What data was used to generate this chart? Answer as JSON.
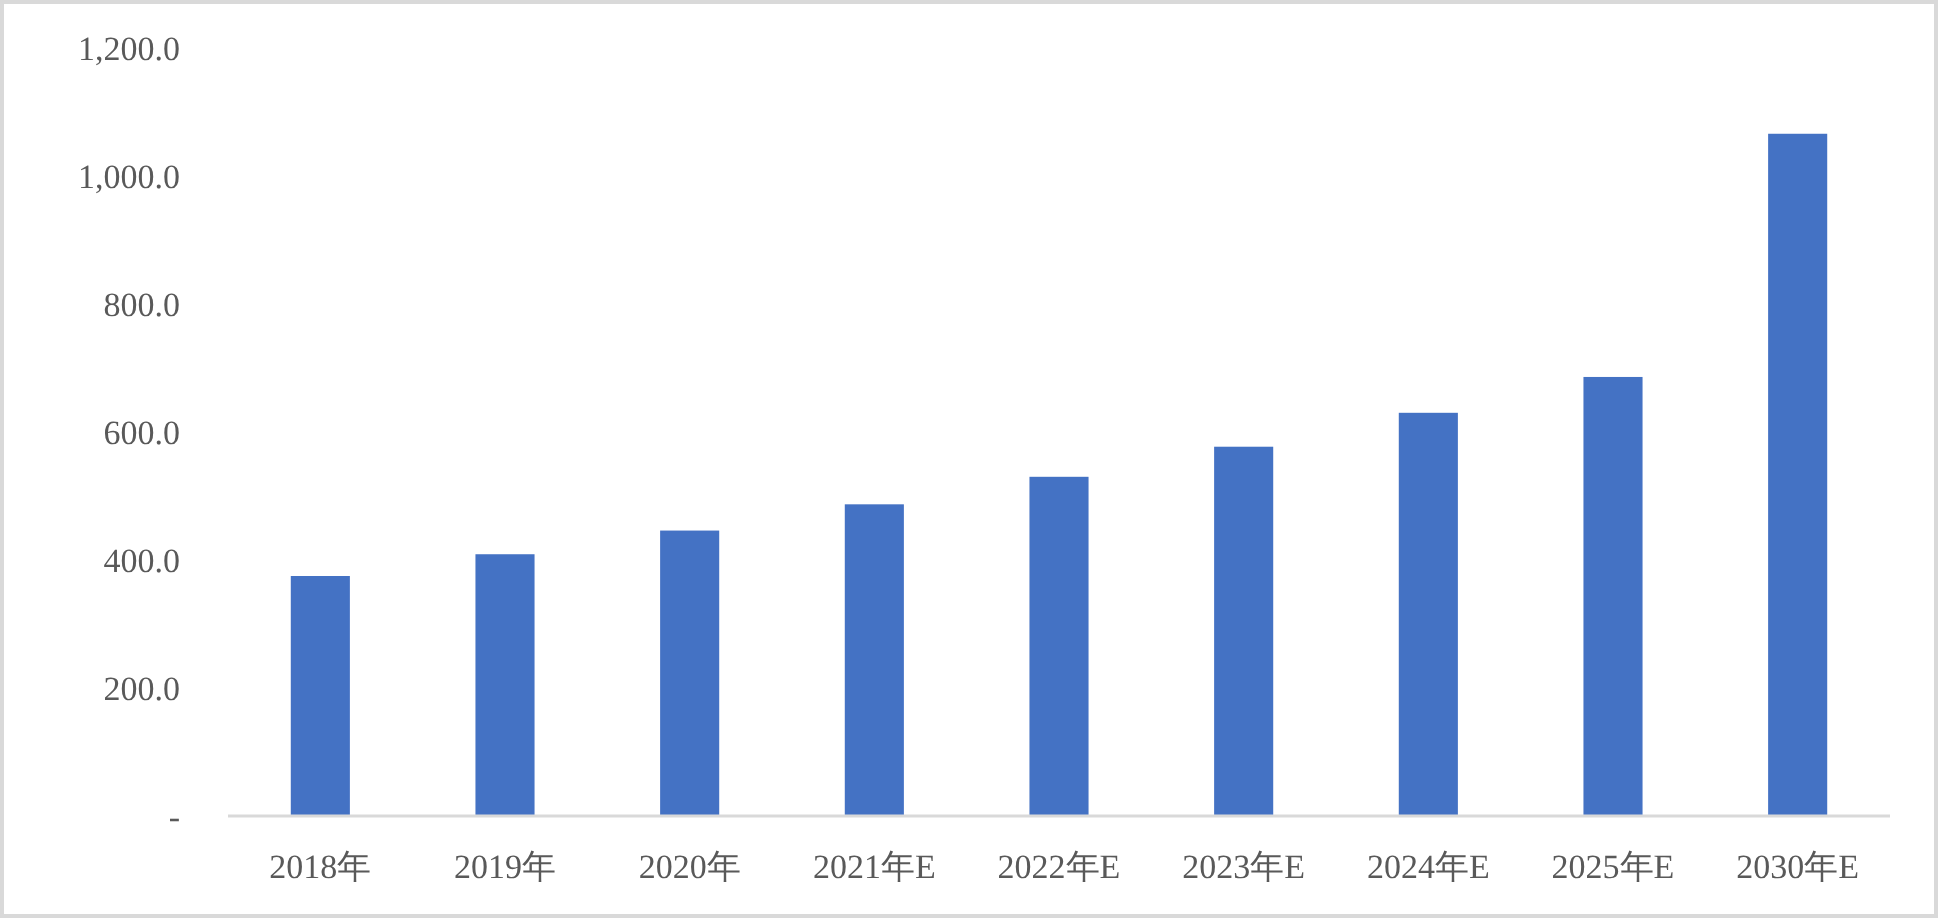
{
  "chart_data": {
    "type": "bar",
    "categories": [
      "2018年",
      "2019年",
      "2020年",
      "2021年E",
      "2022年E",
      "2023年E",
      "2024年E",
      "2025年E",
      "2030年E"
    ],
    "values": [
      375,
      409,
      446,
      487,
      530,
      577,
      630,
      686,
      1066
    ],
    "color": "#4472c4",
    "ylim": [
      0,
      1200
    ],
    "yticks": [
      {
        "value": 0,
        "label": "-"
      },
      {
        "value": 200,
        "label": "200.0"
      },
      {
        "value": 400,
        "label": "400.0"
      },
      {
        "value": 600,
        "label": "600.0"
      },
      {
        "value": 800,
        "label": "800.0"
      },
      {
        "value": 1000,
        "label": "1,000.0"
      },
      {
        "value": 1200,
        "label": "1,200.0"
      }
    ],
    "grid": false
  }
}
